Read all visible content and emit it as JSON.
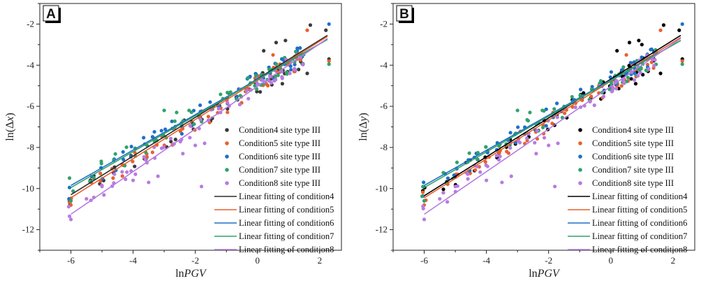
{
  "chart_data": [
    {
      "type": "scatter",
      "panel_label": "A",
      "xlabel_prefix": "ln",
      "xlabel_italic": "PGV",
      "ylabel_prefix": "ln(Δ",
      "ylabel_italic": "x",
      "ylabel_suffix": ")",
      "xlim": [
        -7,
        2.7
      ],
      "ylim": [
        -13,
        -1
      ],
      "xticks": [
        -6,
        -4,
        -2,
        0,
        2
      ],
      "yticks": [
        -2,
        -4,
        -6,
        -8,
        -10,
        -12
      ],
      "xtick_labels": [
        "-6",
        "-4",
        "-2",
        "0",
        "2"
      ],
      "ytick_labels": [
        "-2",
        "-4",
        "-6",
        "-8",
        "-10",
        "-12"
      ],
      "legend_position": "bottom-right",
      "scatter_series": [
        {
          "name": "Condition4 site type III",
          "color": "#3a3a3a",
          "slope": 0.9,
          "intercept": -4.95,
          "seed": 11,
          "extra": [
            [
              1.7,
              -2.05
            ],
            [
              2.2,
              -2.3
            ],
            [
              2.3,
              -3.7
            ],
            [
              0.6,
              -2.9
            ],
            [
              0.9,
              -2.8
            ],
            [
              0.2,
              -3.3
            ],
            [
              1.6,
              -4.4
            ],
            [
              1.2,
              -4.3
            ],
            [
              0.8,
              -4.9
            ]
          ]
        },
        {
          "name": "Condition5 site type III",
          "color": "#e8602c",
          "slope": 0.92,
          "intercept": -4.98,
          "seed": 23,
          "extra": [
            [
              1.6,
              -2.3
            ],
            [
              2.3,
              -3.8
            ],
            [
              -6.0,
              -10.8
            ],
            [
              0.5,
              -3.5
            ]
          ]
        },
        {
          "name": "Condition6 site type III",
          "color": "#1f6fc9",
          "slope": 0.88,
          "intercept": -4.75,
          "seed": 37,
          "extra": [
            [
              2.3,
              -2.0
            ]
          ]
        },
        {
          "name": "Condition7 site type III",
          "color": "#2fa36b",
          "slope": 0.85,
          "intercept": -4.8,
          "seed": 41,
          "extra": [
            [
              -3.0,
              -6.2
            ],
            [
              -2.6,
              -6.3
            ],
            [
              -2.2,
              -6.2
            ],
            [
              2.3,
              -3.95
            ],
            [
              -6.0,
              -10.6
            ]
          ]
        },
        {
          "name": "Condition8 site type III",
          "color": "#b77be0",
          "slope": 0.98,
          "intercept": -5.05,
          "seed": 53,
          "extra": [
            [
              -6.0,
              -11.5
            ],
            [
              -1.8,
              -9.9
            ],
            [
              -3.5,
              -9.7
            ],
            [
              -3.2,
              -9.4
            ],
            [
              -2.0,
              -7.9
            ],
            [
              -1.7,
              -7.8
            ],
            [
              -4.2,
              -9.2
            ],
            [
              -4.0,
              -9.6
            ],
            [
              -5.5,
              -10.5
            ],
            [
              -2.4,
              -8.3
            ],
            [
              -3.6,
              -8.6
            ],
            [
              -5.0,
              -9.9
            ],
            [
              -4.6,
              -9.3
            ]
          ]
        }
      ],
      "fit_lines": [
        {
          "name": "Linear fitting of condition4",
          "color": "#2b2b2b",
          "x": [
            -6,
            2.25
          ],
          "y": [
            -10.3,
            -2.55
          ]
        },
        {
          "name": "Linear fitting of condition5",
          "color": "#e8602c",
          "x": [
            -6,
            2.25
          ],
          "y": [
            -10.45,
            -2.6
          ]
        },
        {
          "name": "Linear fitting of condition6",
          "color": "#1f6fc9",
          "x": [
            -6,
            2.25
          ],
          "y": [
            -9.85,
            -2.75
          ]
        },
        {
          "name": "Linear fitting of condition7",
          "color": "#2fa36b",
          "x": [
            -6,
            2.25
          ],
          "y": [
            -9.95,
            -2.75
          ]
        },
        {
          "name": "Linear fitting of condition8",
          "color": "#b77be0",
          "x": [
            -6,
            2.25
          ],
          "y": [
            -11.25,
            -2.7
          ]
        }
      ]
    },
    {
      "type": "scatter",
      "panel_label": "B",
      "xlabel_prefix": "ln",
      "xlabel_italic": "PGV",
      "ylabel_prefix": "ln(Δ",
      "ylabel_italic": "y",
      "ylabel_suffix": ")",
      "xlim": [
        -7,
        2.7
      ],
      "ylim": [
        -13,
        -1
      ],
      "xticks": [
        -6,
        -4,
        -2,
        0,
        2
      ],
      "yticks": [
        -2,
        -4,
        -6,
        -8,
        -10,
        -12
      ],
      "xtick_labels": [
        "-6",
        "-4",
        "-2",
        "0",
        "2"
      ],
      "ytick_labels": [
        "-2",
        "-4",
        "-6",
        "-8",
        "-10",
        "-12"
      ],
      "legend_position": "bottom-right",
      "scatter_series": [
        {
          "name": "Condition4 site type III",
          "color": "#000000",
          "slope": 0.9,
          "intercept": -4.95,
          "seed": 61,
          "extra": [
            [
              1.7,
              -2.05
            ],
            [
              2.2,
              -2.3
            ],
            [
              2.3,
              -3.7
            ],
            [
              0.6,
              -2.9
            ],
            [
              0.9,
              -2.8
            ],
            [
              0.2,
              -3.3
            ],
            [
              1.6,
              -4.4
            ],
            [
              1.2,
              -4.3
            ],
            [
              0.8,
              -4.9
            ],
            [
              1.0,
              -3.0
            ]
          ]
        },
        {
          "name": "Condition5 site type III",
          "color": "#e8602c",
          "slope": 0.92,
          "intercept": -4.98,
          "seed": 73,
          "extra": [
            [
              1.6,
              -2.3
            ],
            [
              2.3,
              -3.8
            ],
            [
              -6.0,
              -10.8
            ],
            [
              0.5,
              -3.5
            ]
          ]
        },
        {
          "name": "Condition6 site type III",
          "color": "#1f6fc9",
          "slope": 0.88,
          "intercept": -4.75,
          "seed": 87,
          "extra": [
            [
              2.3,
              -2.0
            ]
          ]
        },
        {
          "name": "Condition7 site type III",
          "color": "#2fa36b",
          "slope": 0.85,
          "intercept": -4.8,
          "seed": 91,
          "extra": [
            [
              -3.0,
              -6.2
            ],
            [
              -2.6,
              -6.3
            ],
            [
              -2.2,
              -6.2
            ],
            [
              2.3,
              -3.95
            ],
            [
              -6.0,
              -10.6
            ]
          ]
        },
        {
          "name": "Condition8 site type III",
          "color": "#b77be0",
          "slope": 0.98,
          "intercept": -5.05,
          "seed": 103,
          "extra": [
            [
              -6.0,
              -11.5
            ],
            [
              -1.8,
              -9.9
            ],
            [
              -3.5,
              -9.7
            ],
            [
              -3.2,
              -9.4
            ],
            [
              -2.0,
              -7.9
            ],
            [
              -1.7,
              -7.8
            ],
            [
              -4.2,
              -9.2
            ],
            [
              -4.0,
              -9.6
            ],
            [
              -5.5,
              -10.5
            ],
            [
              -2.4,
              -8.3
            ],
            [
              -3.6,
              -8.6
            ],
            [
              -5.0,
              -9.9
            ],
            [
              -4.6,
              -9.3
            ]
          ]
        }
      ],
      "fit_lines": [
        {
          "name": "Linear fitting of condition4",
          "color": "#000000",
          "x": [
            -6,
            2.25
          ],
          "y": [
            -10.35,
            -2.55
          ]
        },
        {
          "name": "Linear fitting of condition5",
          "color": "#e8602c",
          "x": [
            -6,
            2.25
          ],
          "y": [
            -10.45,
            -2.65
          ]
        },
        {
          "name": "Linear fitting of condition6",
          "color": "#1f6fc9",
          "x": [
            -6,
            2.25
          ],
          "y": [
            -9.85,
            -2.8
          ]
        },
        {
          "name": "Linear fitting of condition7",
          "color": "#2fa36b",
          "x": [
            -6,
            2.25
          ],
          "y": [
            -9.95,
            -2.8
          ]
        },
        {
          "name": "Linear fitting of condition8",
          "color": "#b77be0",
          "x": [
            -6,
            2.25
          ],
          "y": [
            -11.25,
            -2.7
          ]
        }
      ]
    }
  ]
}
